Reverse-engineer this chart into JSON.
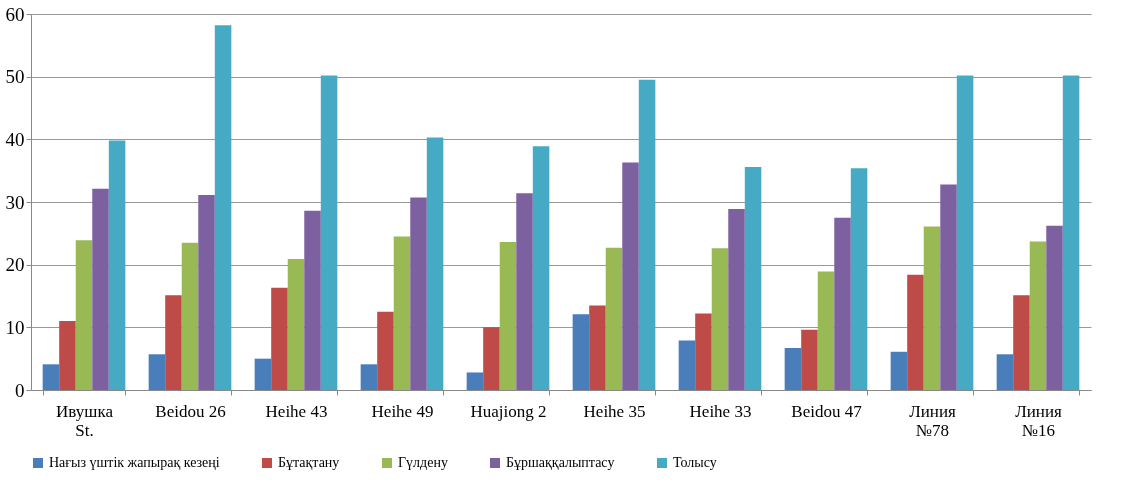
{
  "chart_data": {
    "type": "bar",
    "categories": [
      "Ивушка\nSt.",
      "Beidou 26",
      "Heihe 43",
      "Heihe 49",
      "Huajiong 2",
      "Heihe 35",
      "Heihe 33",
      "Beidou 47",
      "Линия\n№78",
      "Линия\n№16"
    ],
    "series": [
      {
        "name": "Нағыз үштік жапырақ кезеңі",
        "color": "#4a7ebb",
        "values": [
          4.1,
          5.7,
          5.0,
          4.1,
          2.8,
          12.1,
          7.9,
          6.7,
          6.1,
          5.7
        ]
      },
      {
        "name": "Бұтақтану",
        "color": "#be4b48",
        "values": [
          11.0,
          15.1,
          16.3,
          12.5,
          10.0,
          13.5,
          12.2,
          9.6,
          18.4,
          15.1
        ]
      },
      {
        "name": "Гүлдену",
        "color": "#98b954",
        "values": [
          23.9,
          23.5,
          20.9,
          24.5,
          23.6,
          22.7,
          22.6,
          18.9,
          26.1,
          23.7
        ]
      },
      {
        "name": "Бұршаққалыптасу",
        "color": "#7d60a0",
        "values": [
          32.1,
          31.1,
          28.6,
          30.7,
          31.4,
          36.3,
          28.9,
          27.5,
          32.8,
          26.2
        ]
      },
      {
        "name": "Толысу",
        "color": "#46aac5",
        "values": [
          39.8,
          58.2,
          50.2,
          40.3,
          38.9,
          49.5,
          35.6,
          35.4,
          50.2,
          50.2
        ]
      }
    ],
    "ylim": [
      0,
      60
    ],
    "yticks": [
      0,
      10,
      20,
      30,
      40,
      50,
      60
    ],
    "grid": "y",
    "legend": "bottom"
  }
}
